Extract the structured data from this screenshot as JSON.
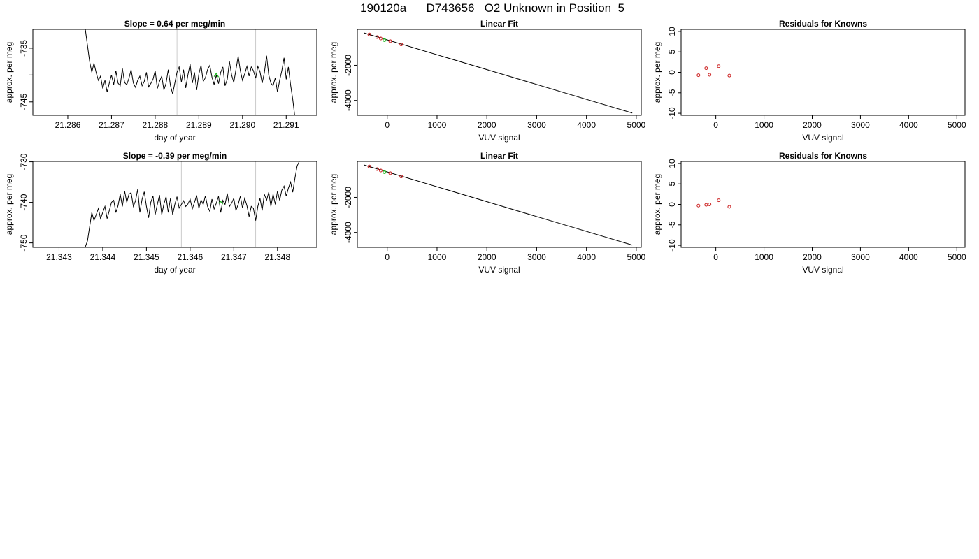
{
  "figure": {
    "title": "190120a      D743656   O2 Unknown in Position  5"
  },
  "colors": {
    "trace": "#000000",
    "highlight": "#22bb22",
    "marker_line": "#cccccc",
    "points": "#cc2222",
    "fit_line": "#000000"
  },
  "chart_data": [
    {
      "type": "line",
      "title": "Slope =  0.64  per meg/min",
      "xlabel": "day of year",
      "ylabel": "approx. per meg",
      "xlim": [
        21.2852,
        21.2917
      ],
      "ylim": [
        -747.5,
        -731.5
      ],
      "xticks": [
        21.286,
        21.287,
        21.288,
        21.289,
        21.29,
        21.291
      ],
      "xtick_labels": [
        "21.286",
        "21.287",
        "21.288",
        "21.289",
        "21.290",
        "21.291"
      ],
      "yticks": [
        -745,
        -740,
        -735
      ],
      "ytick_labels": [
        "-745",
        "",
        "-735"
      ],
      "vlines": [
        21.2885,
        21.2903
      ],
      "series": [
        {
          "x": [
            21.2864,
            21.2865,
            21.28655,
            21.2866,
            21.28665,
            21.2867,
            21.28675,
            21.2868,
            21.28685,
            21.2869,
            21.28695,
            21.287,
            21.28705,
            21.2871,
            21.28715,
            21.2872,
            21.28725,
            21.2873,
            21.28735,
            21.2874,
            21.28745,
            21.2875,
            21.28755,
            21.2876,
            21.28765,
            21.2877,
            21.28775,
            21.2878,
            21.28785,
            21.2879,
            21.28795,
            21.288,
            21.28805,
            21.2881,
            21.28815,
            21.2882,
            21.28825,
            21.2883,
            21.28835,
            21.2884,
            21.28845,
            21.2885,
            21.28855,
            21.2886,
            21.28865,
            21.2887,
            21.28875,
            21.2888,
            21.28885,
            21.2889,
            21.28895,
            21.289,
            21.28905,
            21.2891,
            21.28915,
            21.2892,
            21.28925,
            21.2893,
            21.28935,
            21.2894,
            21.28945,
            21.2895,
            21.28955,
            21.2896,
            21.28965,
            21.2897,
            21.28975,
            21.2898,
            21.28985,
            21.2899,
            21.28995,
            21.29,
            21.29005,
            21.2901,
            21.29015,
            21.2902,
            21.29025,
            21.2903,
            21.29035,
            21.2904,
            21.29045,
            21.2905,
            21.29055,
            21.2906,
            21.29065,
            21.2907,
            21.29075,
            21.2908,
            21.29085,
            21.2909,
            21.29095,
            21.291,
            21.29105,
            21.2911,
            21.29115,
            21.2912
          ],
          "y": [
            -731.5,
            -737.5,
            -739.5,
            -737.8,
            -739.6,
            -741.0,
            -740.2,
            -742.5,
            -741.0,
            -743.2,
            -741.5,
            -740.0,
            -741.8,
            -739.2,
            -741.5,
            -742.0,
            -738.8,
            -741.4,
            -741.8,
            -740.6,
            -739.0,
            -741.5,
            -742.3,
            -741.0,
            -740.2,
            -742.0,
            -741.2,
            -739.5,
            -742.2,
            -741.6,
            -740.8,
            -739.2,
            -742.5,
            -741.2,
            -740.2,
            -742.8,
            -741.5,
            -739.0,
            -742.0,
            -743.5,
            -741.5,
            -739.5,
            -738.5,
            -741.3,
            -739.0,
            -742.4,
            -740.0,
            -738.0,
            -741.5,
            -739.5,
            -742.8,
            -739.8,
            -738.2,
            -741.2,
            -740.5,
            -739.0,
            -738.2,
            -740.4,
            -741.8,
            -740.0,
            -741.6,
            -739.5,
            -738.5,
            -742.0,
            -740.8,
            -737.5,
            -740.0,
            -741.4,
            -739.0,
            -736.5,
            -739.2,
            -741.0,
            -739.8,
            -738.4,
            -740.2,
            -738.5,
            -739.2,
            -740.6,
            -738.4,
            -739.4,
            -741.5,
            -739.6,
            -736.4,
            -740.0,
            -741.5,
            -742.0,
            -740.5,
            -743.2,
            -741.0,
            -739.2,
            -736.8,
            -740.8,
            -738.5,
            -741.8,
            -744.5,
            -748.0
          ]
        }
      ],
      "highlight": {
        "x": [
          21.28935,
          21.2894,
          21.28945
        ],
        "y": [
          -740.3,
          -739.7,
          -740.4
        ]
      }
    },
    {
      "type": "scatter",
      "title": "Linear Fit",
      "xlabel": "VUV signal",
      "ylabel": "approx. per meg",
      "xlim": [
        -600,
        5100
      ],
      "ylim": [
        -4850,
        50
      ],
      "xticks": [
        0,
        1000,
        2000,
        3000,
        4000,
        5000
      ],
      "xtick_labels": [
        "0",
        "1000",
        "2000",
        "3000",
        "4000",
        "5000"
      ],
      "yticks": [
        -4000,
        -2000
      ],
      "ytick_labels": [
        "-4000",
        "-2000"
      ],
      "fit_line": {
        "x": [
          -470,
          4920
        ],
        "y": [
          -150,
          -4720
        ]
      },
      "points": {
        "x": [
          -360,
          -200,
          -130,
          60,
          280
        ],
        "y": [
          -240,
          -390,
          -470,
          -620,
          -810
        ]
      },
      "highlight": {
        "x": [
          -55
        ],
        "y": [
          -560
        ]
      }
    },
    {
      "type": "scatter",
      "title": "Residuals for Knowns",
      "xlabel": "VUV signal",
      "ylabel": "approx. per meg",
      "xlim": [
        -720,
        5170
      ],
      "ylim": [
        -10.5,
        10.5
      ],
      "xticks": [
        0,
        1000,
        2000,
        3000,
        4000,
        5000
      ],
      "xtick_labels": [
        "0",
        "1000",
        "2000",
        "3000",
        "4000",
        "5000"
      ],
      "yticks": [
        -10,
        -5,
        0,
        5,
        10
      ],
      "ytick_labels": [
        "-10",
        "-5",
        "0",
        "5",
        "10"
      ],
      "points": {
        "x": [
          -360,
          -200,
          -130,
          60,
          280
        ],
        "y": [
          -0.7,
          1.0,
          -0.6,
          1.5,
          -0.8
        ]
      }
    },
    {
      "type": "line",
      "title": "Slope =  -0.39  per meg/min",
      "xlabel": "day of year",
      "ylabel": "approx. per meg",
      "xlim": [
        21.3424,
        21.3489
      ],
      "ylim": [
        -751.1,
        -729.9
      ],
      "xticks": [
        21.343,
        21.344,
        21.345,
        21.346,
        21.347,
        21.348
      ],
      "xtick_labels": [
        "21.343",
        "21.344",
        "21.345",
        "21.346",
        "21.347",
        "21.348"
      ],
      "yticks": [
        -750,
        -740,
        -730
      ],
      "ytick_labels": [
        "-750",
        "-740",
        "-730"
      ],
      "vlines": [
        21.3458,
        21.3475
      ],
      "series": [
        {
          "x": [
            21.3436,
            21.34365,
            21.3437,
            21.34375,
            21.3438,
            21.34385,
            21.3439,
            21.34395,
            21.344,
            21.34405,
            21.3441,
            21.34415,
            21.3442,
            21.34425,
            21.3443,
            21.34435,
            21.3444,
            21.34445,
            21.3445,
            21.34455,
            21.3446,
            21.34465,
            21.3447,
            21.34475,
            21.3448,
            21.34485,
            21.3449,
            21.34495,
            21.345,
            21.34505,
            21.3451,
            21.34515,
            21.3452,
            21.34525,
            21.3453,
            21.34535,
            21.3454,
            21.34545,
            21.3455,
            21.34555,
            21.3456,
            21.34565,
            21.3457,
            21.34575,
            21.3458,
            21.34585,
            21.3459,
            21.34595,
            21.346,
            21.34605,
            21.3461,
            21.34615,
            21.3462,
            21.34625,
            21.3463,
            21.34635,
            21.3464,
            21.34645,
            21.3465,
            21.34655,
            21.3466,
            21.34665,
            21.3467,
            21.34675,
            21.3468,
            21.34685,
            21.3469,
            21.34695,
            21.347,
            21.34705,
            21.3471,
            21.34715,
            21.3472,
            21.34725,
            21.3473,
            21.34735,
            21.3474,
            21.34745,
            21.3475,
            21.34755,
            21.3476,
            21.34765,
            21.3477,
            21.34775,
            21.3478,
            21.34785,
            21.3479,
            21.34795,
            21.348,
            21.34805,
            21.3481,
            21.34815,
            21.3482,
            21.34825,
            21.3483,
            21.34835,
            21.3484,
            21.34845,
            21.3485
          ],
          "y": [
            -751.0,
            -749.5,
            -746.0,
            -742.5,
            -744.5,
            -743.0,
            -741.5,
            -744.0,
            -742.5,
            -741.0,
            -744.0,
            -742.0,
            -740.0,
            -739.5,
            -742.5,
            -740.8,
            -738.0,
            -741.0,
            -737.2,
            -740.0,
            -738.0,
            -737.6,
            -741.0,
            -739.6,
            -736.8,
            -742.5,
            -739.2,
            -737.4,
            -741.0,
            -743.8,
            -740.0,
            -738.4,
            -743.0,
            -740.5,
            -738.2,
            -743.0,
            -740.4,
            -738.6,
            -742.5,
            -739.0,
            -743.0,
            -740.5,
            -738.6,
            -741.4,
            -740.5,
            -739.6,
            -741.0,
            -740.4,
            -739.2,
            -741.6,
            -740.0,
            -738.3,
            -741.5,
            -739.4,
            -740.5,
            -738.4,
            -741.0,
            -742.2,
            -739.2,
            -741.6,
            -740.2,
            -738.5,
            -742.5,
            -739.5,
            -740.5,
            -737.8,
            -741.0,
            -740.2,
            -739.0,
            -742.0,
            -740.5,
            -738.5,
            -741.4,
            -739.0,
            -740.8,
            -743.5,
            -741.0,
            -741.5,
            -744.5,
            -741.0,
            -739.0,
            -742.0,
            -738.0,
            -739.5,
            -737.5,
            -741.0,
            -738.0,
            -740.5,
            -737.2,
            -739.5,
            -737.0,
            -736.0,
            -738.5,
            -736.5,
            -735.0,
            -737.5,
            -734.0,
            -731.0,
            -729.9
          ]
        }
      ],
      "highlight": {
        "x": [
          21.34665,
          21.3467,
          21.34675
        ],
        "y": [
          -740.2,
          -739.8,
          -740.4
        ]
      }
    },
    {
      "type": "scatter",
      "title": "Linear Fit",
      "xlabel": "VUV signal",
      "ylabel": "approx. per meg",
      "xlim": [
        -600,
        5100
      ],
      "ylim": [
        -4850,
        50
      ],
      "xticks": [
        0,
        1000,
        2000,
        3000,
        4000,
        5000
      ],
      "xtick_labels": [
        "0",
        "1000",
        "2000",
        "3000",
        "4000",
        "5000"
      ],
      "yticks": [
        -4000,
        -2000
      ],
      "ytick_labels": [
        "-4000",
        "-2000"
      ],
      "fit_line": {
        "x": [
          -470,
          4920
        ],
        "y": [
          -150,
          -4720
        ]
      },
      "points": {
        "x": [
          -360,
          -200,
          -130,
          60,
          280
        ],
        "y": [
          -240,
          -390,
          -470,
          -620,
          -810
        ]
      },
      "highlight": {
        "x": [
          -55
        ],
        "y": [
          -560
        ]
      }
    },
    {
      "type": "scatter",
      "title": "Residuals for Knowns",
      "xlabel": "VUV signal",
      "ylabel": "approx. per meg",
      "xlim": [
        -720,
        5170
      ],
      "ylim": [
        -10.5,
        10.5
      ],
      "xticks": [
        0,
        1000,
        2000,
        3000,
        4000,
        5000
      ],
      "xtick_labels": [
        "0",
        "1000",
        "2000",
        "3000",
        "4000",
        "5000"
      ],
      "yticks": [
        -10,
        -5,
        0,
        5,
        10
      ],
      "ytick_labels": [
        "-10",
        "-5",
        "0",
        "5",
        "10"
      ],
      "points": {
        "x": [
          -360,
          -200,
          -130,
          60,
          280
        ],
        "y": [
          -0.3,
          -0.1,
          0.0,
          1.0,
          -0.6
        ]
      }
    }
  ]
}
